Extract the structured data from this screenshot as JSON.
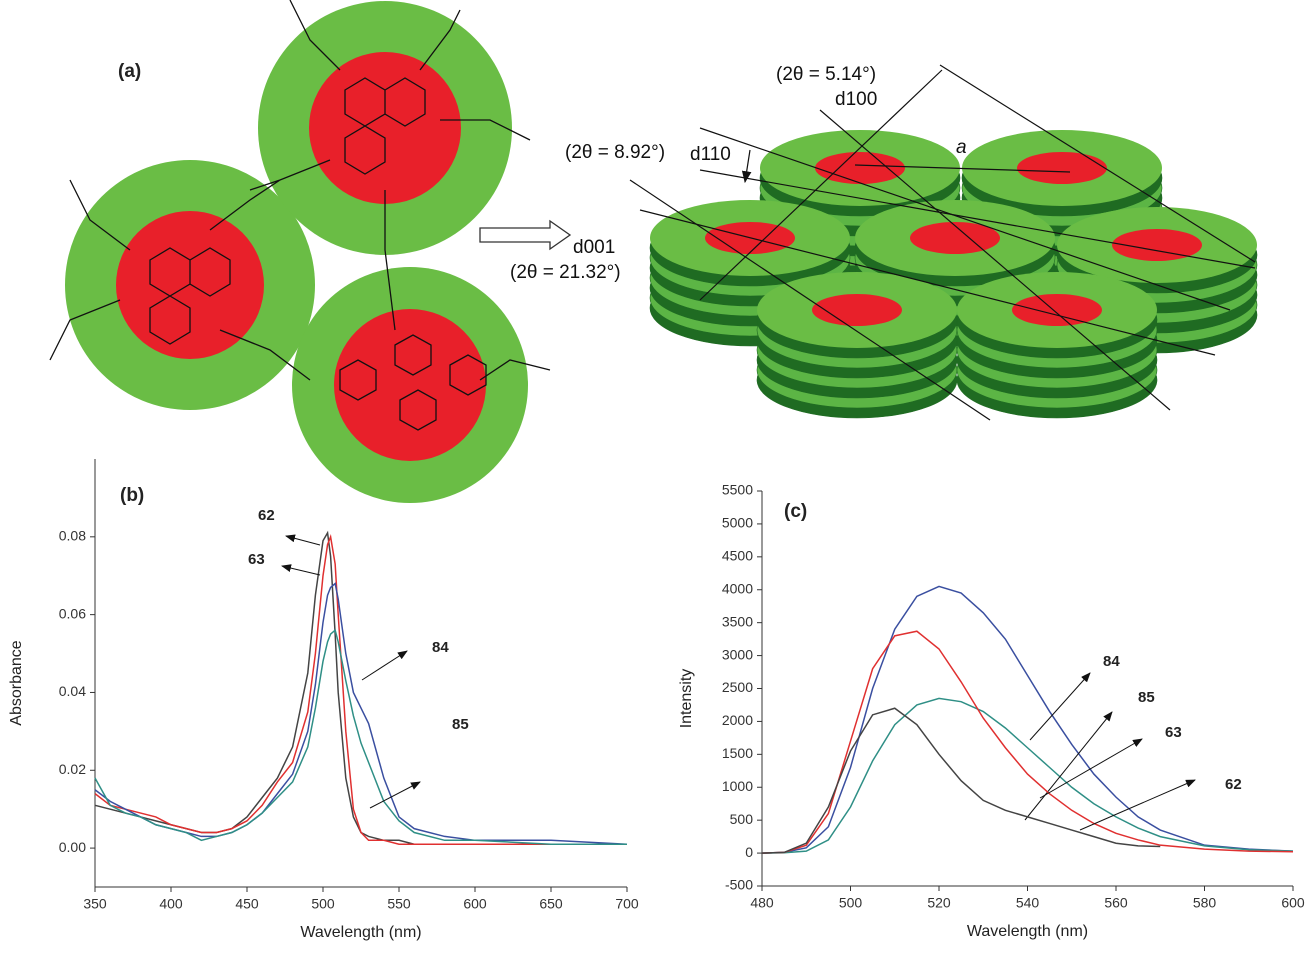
{
  "diagram": {
    "label": "(a)",
    "texts": [
      "(2θ = 5.14°)",
      "d100",
      "(2θ = 8.92°)",
      "d110",
      "a",
      "d001",
      "(2θ = 21.32°)"
    ]
  },
  "chart_data": [
    {
      "type": "line",
      "label": "(b)",
      "x_label": "Wavelength (nm)",
      "y_label": "Absorbance",
      "x": [
        350,
        360,
        370,
        380,
        390,
        400,
        410,
        420,
        430,
        440,
        450,
        460,
        470,
        480,
        490,
        495,
        500,
        503,
        505,
        508,
        510,
        515,
        520,
        525,
        530,
        540,
        550,
        560,
        580,
        600,
        650,
        700
      ],
      "series": [
        {
          "name": "62",
          "color": "#444444",
          "values": [
            0.011,
            0.01,
            0.009,
            0.008,
            0.007,
            0.006,
            0.005,
            0.004,
            0.004,
            0.005,
            0.008,
            0.013,
            0.018,
            0.026,
            0.045,
            0.065,
            0.079,
            0.081,
            0.075,
            0.055,
            0.04,
            0.018,
            0.008,
            0.004,
            0.003,
            0.002,
            0.002,
            0.001,
            0.001,
            0.001,
            0.001,
            0.001
          ]
        },
        {
          "name": "63",
          "color": "#e03030",
          "values": [
            0.014,
            0.011,
            0.01,
            0.009,
            0.008,
            0.006,
            0.005,
            0.004,
            0.004,
            0.005,
            0.007,
            0.011,
            0.017,
            0.022,
            0.035,
            0.05,
            0.07,
            0.078,
            0.08,
            0.073,
            0.06,
            0.03,
            0.01,
            0.004,
            0.002,
            0.002,
            0.001,
            0.001,
            0.001,
            0.001,
            0.001,
            0.001
          ]
        },
        {
          "name": "84",
          "color": "#3a4fa0",
          "values": [
            0.015,
            0.012,
            0.01,
            0.008,
            0.006,
            0.005,
            0.004,
            0.003,
            0.003,
            0.004,
            0.006,
            0.009,
            0.014,
            0.019,
            0.03,
            0.042,
            0.058,
            0.065,
            0.067,
            0.068,
            0.064,
            0.05,
            0.04,
            0.036,
            0.032,
            0.018,
            0.008,
            0.005,
            0.003,
            0.002,
            0.002,
            0.001
          ]
        },
        {
          "name": "85",
          "color": "#2f8f86",
          "values": [
            0.018,
            0.011,
            0.009,
            0.008,
            0.006,
            0.005,
            0.004,
            0.002,
            0.003,
            0.004,
            0.006,
            0.009,
            0.013,
            0.017,
            0.026,
            0.036,
            0.048,
            0.053,
            0.055,
            0.056,
            0.053,
            0.043,
            0.034,
            0.027,
            0.022,
            0.012,
            0.007,
            0.004,
            0.002,
            0.002,
            0.001,
            0.001
          ]
        }
      ],
      "xlim": [
        350,
        700
      ],
      "xticks": [
        350,
        400,
        450,
        500,
        550,
        600,
        650,
        700
      ],
      "ylim": [
        -0.01,
        0.1
      ],
      "yticks": [
        {
          "value": 0,
          "label": "0.00"
        },
        {
          "value": 0.02,
          "label": "0.02"
        },
        {
          "value": 0.04,
          "label": "0.04"
        },
        {
          "value": 0.06,
          "label": "0.06"
        },
        {
          "value": 0.08,
          "label": "0.08"
        }
      ]
    },
    {
      "type": "line",
      "label": "(c)",
      "x_label": "Wavelength (nm)",
      "y_label": "Intensity",
      "x": [
        480,
        485,
        490,
        495,
        500,
        505,
        510,
        515,
        520,
        525,
        530,
        535,
        540,
        545,
        550,
        555,
        560,
        565,
        570,
        580,
        590,
        600
      ],
      "series": [
        {
          "name": "84",
          "color": "#3a4fa0",
          "values": [
            0,
            10,
            80,
            400,
            1300,
            2500,
            3400,
            3900,
            4050,
            3950,
            3650,
            3250,
            2700,
            2150,
            1650,
            1200,
            850,
            550,
            350,
            120,
            60,
            30
          ]
        },
        {
          "name": "85",
          "color": "#2f8f86",
          "values": [
            0,
            5,
            30,
            200,
            700,
            1400,
            1950,
            2250,
            2350,
            2300,
            2150,
            1900,
            1600,
            1300,
            1000,
            750,
            550,
            380,
            250,
            110,
            50,
            30
          ]
        },
        {
          "name": "63",
          "color": "#e03030",
          "values": [
            0,
            10,
            120,
            600,
            1700,
            2800,
            3300,
            3370,
            3100,
            2600,
            2050,
            1600,
            1200,
            900,
            650,
            450,
            300,
            200,
            120,
            60,
            30,
            20
          ]
        },
        {
          "name": "62",
          "color": "#444444",
          "values": [
            0,
            10,
            150,
            700,
            1550,
            2100,
            2200,
            1950,
            1500,
            1100,
            800,
            650,
            550,
            450,
            350,
            250,
            150,
            110,
            100,
            null,
            null,
            null
          ]
        }
      ],
      "xlim": [
        480,
        600
      ],
      "xticks": [
        480,
        500,
        520,
        540,
        560,
        580,
        600
      ],
      "ylim": [
        -500,
        5500
      ],
      "yticks": [
        -500,
        0,
        500,
        1000,
        1500,
        2000,
        2500,
        3000,
        3500,
        4000,
        4500,
        5000,
        5500
      ]
    }
  ]
}
